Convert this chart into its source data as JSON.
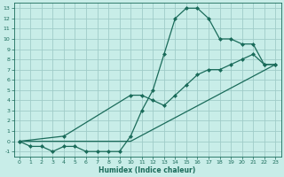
{
  "xlabel": "Humidex (Indice chaleur)",
  "background_color": "#c8ede8",
  "line_color": "#1a6b5a",
  "grid_color": "#a0ccc8",
  "xlim": [
    -0.5,
    23.5
  ],
  "ylim": [
    -1.5,
    13.5
  ],
  "xticks": [
    0,
    1,
    2,
    3,
    4,
    5,
    6,
    7,
    8,
    9,
    10,
    11,
    12,
    13,
    14,
    15,
    16,
    17,
    18,
    19,
    20,
    21,
    22,
    23
  ],
  "yticks": [
    -1,
    0,
    1,
    2,
    3,
    4,
    5,
    6,
    7,
    8,
    9,
    10,
    11,
    12,
    13
  ],
  "line1_x": [
    0,
    1,
    2,
    3,
    4,
    5,
    6,
    7,
    8,
    9,
    10,
    11,
    12,
    13,
    14,
    15,
    16,
    17,
    18,
    19,
    20,
    21,
    22,
    23
  ],
  "line1_y": [
    0,
    -0.5,
    -0.5,
    -1,
    -0.5,
    -0.5,
    -1,
    -1,
    -1,
    -1,
    0.5,
    3,
    5,
    8.5,
    12,
    13,
    13,
    12,
    10,
    10,
    9.5,
    9.5,
    7.5,
    7.5
  ],
  "line2_x": [
    0,
    3,
    10,
    23
  ],
  "line2_y": [
    0,
    0,
    0,
    7.5
  ],
  "line3_x": [
    0,
    4,
    10,
    11,
    12,
    13,
    14,
    15,
    16,
    17,
    18,
    19,
    20,
    21,
    22,
    23
  ],
  "line3_y": [
    0,
    0.5,
    4.5,
    4.5,
    4,
    3.5,
    4.5,
    5.5,
    6.5,
    7,
    7,
    7.5,
    8,
    8.5,
    7.5,
    7.5
  ]
}
